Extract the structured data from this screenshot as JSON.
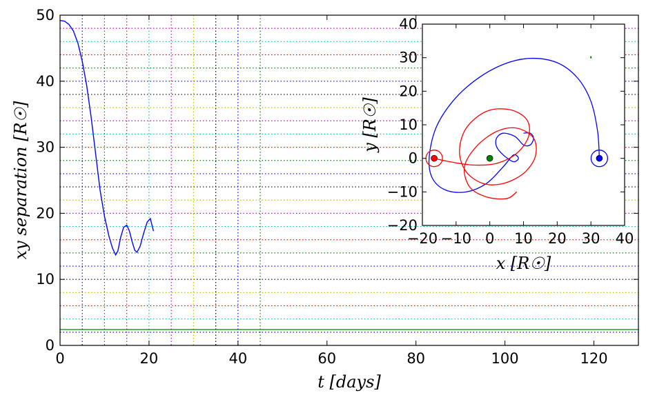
{
  "chart_data": [
    {
      "type": "line",
      "xlabel": "t  [days]",
      "ylabel": "xy  separation  [R☉]",
      "xlim": [
        0,
        130
      ],
      "ylim": [
        0,
        50
      ],
      "xticks": [
        0,
        20,
        40,
        60,
        80,
        100,
        120
      ],
      "yticks": [
        0,
        10,
        20,
        30,
        40,
        50
      ],
      "xtick_labels": [
        "0",
        "20",
        "40",
        "60",
        "80",
        "100",
        "120"
      ],
      "ytick_labels": [
        "0",
        "10",
        "20",
        "30",
        "40",
        "50"
      ],
      "grid": false,
      "vertical_reference_lines": [
        {
          "x": 5,
          "color": "#0000ff"
        },
        {
          "x": 10,
          "color": "#008000"
        },
        {
          "x": 15,
          "color": "#ff0000"
        },
        {
          "x": 20,
          "color": "#00bfbf"
        },
        {
          "x": 25,
          "color": "#bf00bf"
        },
        {
          "x": 30,
          "color": "#bfbf00"
        },
        {
          "x": 35,
          "color": "#000000"
        },
        {
          "x": 40,
          "color": "#0000ff"
        },
        {
          "x": 45,
          "color": "#008000"
        }
      ],
      "horizontal_reference_lines": [
        {
          "y": 2,
          "color": "#0000ff"
        },
        {
          "y": 4,
          "color": "#00bfbf"
        },
        {
          "y": 6,
          "color": "#ff0000"
        },
        {
          "y": 8,
          "color": "#bfbf00"
        },
        {
          "y": 10,
          "color": "#000000"
        },
        {
          "y": 12,
          "color": "#0000ff"
        },
        {
          "y": 14,
          "color": "#008000"
        },
        {
          "y": 16,
          "color": "#ff0000"
        },
        {
          "y": 18,
          "color": "#00bfbf"
        },
        {
          "y": 20,
          "color": "#bf00bf"
        },
        {
          "y": 22,
          "color": "#bfbf00"
        },
        {
          "y": 24,
          "color": "#000000"
        },
        {
          "y": 26,
          "color": "#0000ff"
        },
        {
          "y": 28,
          "color": "#008000"
        },
        {
          "y": 30,
          "color": "#ff0000"
        },
        {
          "y": 32,
          "color": "#00bfbf"
        },
        {
          "y": 34,
          "color": "#bf00bf"
        },
        {
          "y": 36,
          "color": "#bfbf00"
        },
        {
          "y": 38,
          "color": "#000000"
        },
        {
          "y": 40,
          "color": "#0000ff"
        },
        {
          "y": 42,
          "color": "#008000"
        },
        {
          "y": 44,
          "color": "#ff0000"
        },
        {
          "y": 46,
          "color": "#00bfbf"
        },
        {
          "y": 48,
          "color": "#bf00bf"
        }
      ],
      "solid_reference_line": {
        "y": 2.4,
        "color": "#008000"
      },
      "series": [
        {
          "color": "#0000ff",
          "x": [
            0,
            1,
            2,
            3,
            4,
            5,
            6,
            7,
            8,
            9,
            10,
            11,
            11.8,
            12.5,
            13.0,
            13.6,
            14.3,
            15.0,
            15.6,
            16.2,
            16.8,
            17.3,
            18.0,
            18.8,
            19.6,
            20.3,
            21.0
          ],
          "y": [
            49.2,
            49.1,
            48.6,
            47.6,
            45.8,
            43.0,
            39.3,
            34.5,
            29.0,
            23.5,
            19.5,
            16.5,
            14.7,
            13.7,
            14.3,
            16.3,
            17.9,
            18.2,
            17.3,
            15.7,
            14.4,
            14.1,
            15.0,
            17.0,
            18.7,
            19.2,
            17.3
          ]
        }
      ]
    },
    {
      "type": "line",
      "xlabel": "x [R☉]",
      "ylabel": "y [R☉]",
      "xlim": [
        -20,
        40
      ],
      "ylim": [
        -20,
        40
      ],
      "xticks": [
        -20,
        -10,
        0,
        10,
        20,
        30,
        40
      ],
      "yticks": [
        -20,
        -10,
        0,
        10,
        20,
        30,
        40
      ],
      "xtick_labels": [
        "−20",
        "−10",
        "0",
        "10",
        "20",
        "30",
        "40"
      ],
      "ytick_labels": [
        "−20",
        "−10",
        "0",
        "10",
        "20",
        "30",
        "40"
      ],
      "grid": false,
      "series": [
        {
          "color": "#0000ff",
          "x": [
            32.5,
            32.0,
            30.0,
            26.0,
            20.0,
            12.0,
            4.0,
            -4.0,
            -11.0,
            -16.0,
            -18.0,
            -17.0,
            -13.0,
            -7.0,
            -1.0,
            4.0,
            7.0,
            8.5,
            7.0,
            4.0,
            2.0,
            2.0,
            4.0,
            7.5,
            10.0,
            12.0,
            13.0,
            12.0,
            10.0
          ],
          "y": [
            0.0,
            8.0,
            17.0,
            24.0,
            28.5,
            29.8,
            28.0,
            23.5,
            17.0,
            9.0,
            0.0,
            -6.0,
            -9.5,
            -10.0,
            -7.5,
            -2.5,
            1.0,
            0.0,
            -1.0,
            1.0,
            3.5,
            6.0,
            7.5,
            6.5,
            4.0,
            4.0,
            6.0,
            7.5,
            7.5
          ]
        },
        {
          "color": "#ff0000",
          "x": [
            -16.5,
            -12.0,
            -5.0,
            2.0,
            8.0,
            11.5,
            11.0,
            6.0,
            -1.0,
            -7.0,
            -9.0,
            -7.0,
            -2.0,
            4.0,
            10.0,
            13.5,
            13.0,
            8.0,
            2.0,
            -4.0,
            -7.5,
            -6.0,
            -1.0,
            5.0,
            8.0
          ],
          "y": [
            0.0,
            -1.0,
            -2.0,
            -1.5,
            1.5,
            6.5,
            11.5,
            14.5,
            14.0,
            9.0,
            2.0,
            -4.0,
            -7.5,
            -7.5,
            -4.5,
            0.5,
            6.0,
            9.0,
            8.0,
            3.5,
            -2.5,
            -8.5,
            -11.5,
            -12.0,
            -10.0
          ]
        }
      ],
      "markers": [
        {
          "x": 32.5,
          "y": 0,
          "color": "#0000ff",
          "ring": true
        },
        {
          "x": -16.5,
          "y": 0,
          "color": "#ff0000",
          "ring": true
        },
        {
          "x": 0,
          "y": 0,
          "color": "#008000",
          "ring": false
        },
        {
          "x": 30,
          "y": 30,
          "color": "#008000",
          "ring": false,
          "small": true
        }
      ]
    }
  ]
}
